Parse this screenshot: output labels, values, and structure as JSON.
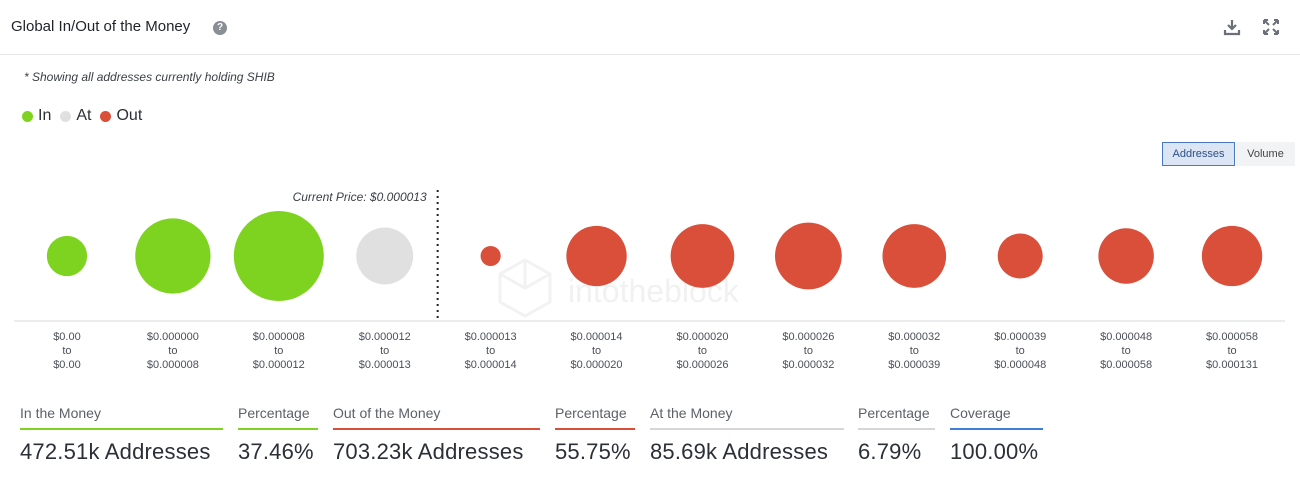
{
  "header": {
    "title": "Global In/Out of the Money",
    "help_icon": "question-circle-icon",
    "download_icon": "download-icon",
    "expand_icon": "expand-icon"
  },
  "note": "* Showing all addresses currently holding SHIB",
  "legend": [
    {
      "label": "In",
      "color": "#7ed321"
    },
    {
      "label": "At",
      "color": "#e0e0e0"
    },
    {
      "label": "Out",
      "color": "#d94f3a"
    }
  ],
  "toggles": {
    "addresses": "Addresses",
    "volume": "Volume",
    "active": "Addresses"
  },
  "watermark": "intotheblock",
  "chart_data": {
    "type": "bubble",
    "title": "Global In/Out of the Money",
    "current_price_label": "Current Price: $0.000013",
    "current_price_after_index": 3,
    "metric": "Addresses",
    "buckets": [
      {
        "from": "$0.00",
        "to": "$0.00",
        "status": "in",
        "size": 0.2
      },
      {
        "from": "$0.000000",
        "to": "$0.000008",
        "status": "in",
        "size": 0.7
      },
      {
        "from": "$0.000008",
        "to": "$0.000012",
        "status": "in",
        "size": 1.0
      },
      {
        "from": "$0.000012",
        "to": "$0.000013",
        "status": "at",
        "size": 0.4
      },
      {
        "from": "$0.000013",
        "to": "$0.000014",
        "status": "out",
        "size": 0.05
      },
      {
        "from": "$0.000014",
        "to": "$0.000020",
        "status": "out",
        "size": 0.45
      },
      {
        "from": "$0.000020",
        "to": "$0.000026",
        "status": "out",
        "size": 0.5
      },
      {
        "from": "$0.000026",
        "to": "$0.000032",
        "status": "out",
        "size": 0.55
      },
      {
        "from": "$0.000032",
        "to": "$0.000039",
        "status": "out",
        "size": 0.5
      },
      {
        "from": "$0.000039",
        "to": "$0.000048",
        "status": "out",
        "size": 0.25
      },
      {
        "from": "$0.000048",
        "to": "$0.000058",
        "status": "out",
        "size": 0.38
      },
      {
        "from": "$0.000058",
        "to": "$0.000131",
        "status": "out",
        "size": 0.45
      }
    ],
    "to_word": "to"
  },
  "stats": [
    {
      "label": "In the Money",
      "value": "472.51k Addresses",
      "color": "#7ed321"
    },
    {
      "label": "Percentage",
      "value": "37.46%",
      "color": "#7ed321"
    },
    {
      "label": "Out of the Money",
      "value": "703.23k Addresses",
      "color": "#d94f3a"
    },
    {
      "label": "Percentage",
      "value": "55.75%",
      "color": "#d94f3a"
    },
    {
      "label": "At the Money",
      "value": "85.69k Addresses",
      "color": "#d6d6d6"
    },
    {
      "label": "Percentage",
      "value": "6.79%",
      "color": "#d6d6d6"
    },
    {
      "label": "Coverage",
      "value": "100.00%",
      "color": "#3f7fd9"
    }
  ]
}
